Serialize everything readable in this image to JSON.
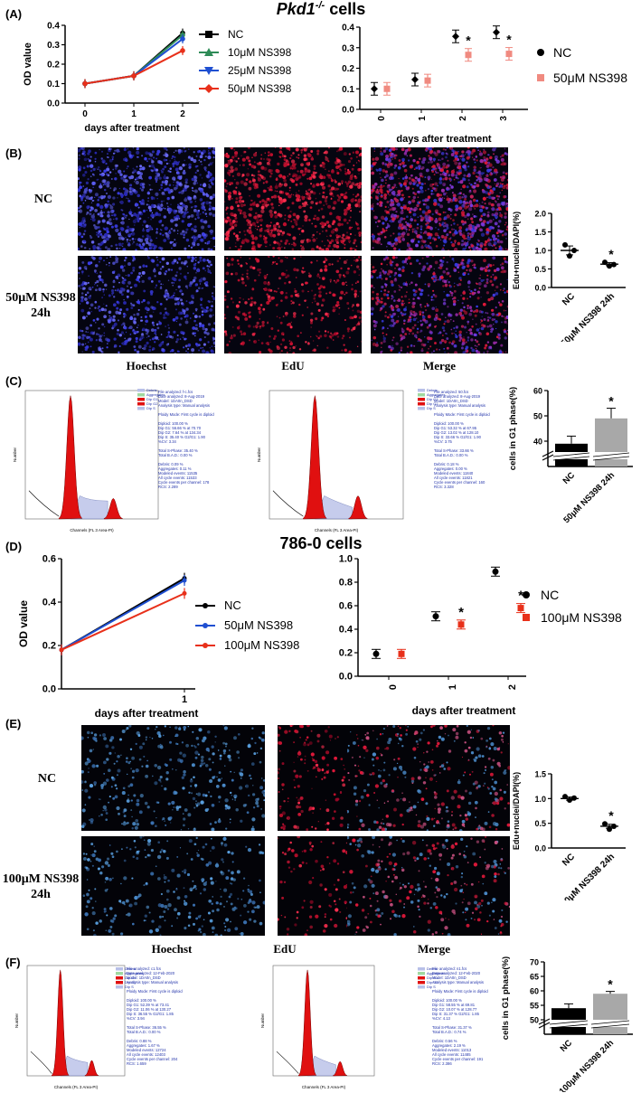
{
  "sections": {
    "pkd1_title": "Pkd1-/- cells",
    "pkd1_title_main": "Pkd1",
    "pkd1_title_sup": "-/-",
    "pkd1_title_tail": " cells",
    "c786_title": "786-0 cells"
  },
  "panels": {
    "A": "(A)",
    "B": "(B)",
    "C": "(C)",
    "D": "(D)",
    "E": "(E)",
    "F": "(F)"
  },
  "microscopy": {
    "B": {
      "rows": [
        "NC",
        "50μM NS398\n24h"
      ],
      "columns": [
        "Hoechst",
        "EdU",
        "Merge"
      ]
    },
    "E": {
      "rows": [
        "NC",
        "100μM NS398\n24h"
      ],
      "columns": [
        "Hoechst",
        "EdU",
        "Merge"
      ]
    }
  },
  "flow": {
    "axis_x": "Channels (FL 3 Area-PI)",
    "axis_y": "Number",
    "legend": [
      "Debris",
      "Aggregates",
      "Dip G1",
      "Dip G2",
      "Dip S"
    ],
    "C1": [
      "File analyzed: f-c.fcs",
      "Date analyzed: 8-Aug-2019",
      "Model: 1DA0n_DSD",
      "Analysis type: Manual analysis",
      "",
      "Ploidy Mode: First cycle is diploid",
      "",
      "Diploid: 100.00 %",
      "Dip G1: 56.66 % at 70.70",
      "Dip G2: 7.64 % at 134.34",
      "Dip S: 35.40 %  G2/G1: 1.90",
      "%CV: 3.34",
      "",
      "Total S-Phase: 35.40 %",
      "Total B.A.D.: 0.00 %",
      "",
      "Debris: 0.09 %",
      "Aggregates: 0.11 %",
      "Modeled events: 11535",
      "All cycle events: 11533",
      "Cycle events per channel: 178",
      "RCS: 2.289"
    ],
    "C2": [
      "File analyzed: 50.fcs",
      "Date analyzed: 8-Aug-2019",
      "Model: 1DA0n_DSD",
      "Analysis type: Manual analysis",
      "",
      "Ploidy Mode: First cycle is diploid",
      "",
      "Diploid: 100.00 %",
      "Dip G1: 53.32 % at 67.95",
      "Dip G2: 13.02 % at 128.10",
      "Dip S: 33.66 %  G2/G1: 1.90",
      "%CV: 3.75",
      "",
      "Total S-Phase: 33.66 %",
      "Total B.A.D.: 0.00 %",
      "",
      "Debris: 0.18 %",
      "Aggregates: 0.00 %",
      "Modeled events: 11840",
      "All cycle events: 11821",
      "Cycle events per channel: 160",
      "RCS: 3.328"
    ],
    "F1": [
      "File analyzed: c1.fcs",
      "Date analyzed: 12-Feb-2020",
      "Model: 1DA0n_DSD",
      "Analysis type: Manual analysis",
      "",
      "Ploidy Mode: First cycle is diploid",
      "",
      "Diploid: 100.00 %",
      "Dip G1: 52.39 % at 73.41",
      "Dip G2: 11.06 % at 130.27",
      "Dip S: 36.55 %  G2/G1: 1.85",
      "%CV: 3.94",
      "",
      "Total S-Phase: 36.55 %",
      "Total B.A.D.: 0.00 %",
      "",
      "Debris: 0.88 %",
      "Aggregates: 1.67 %",
      "Modeled events: 12724",
      "All cycle events: 12403",
      "Cycle events per channel: 204",
      "RCS: 1.659"
    ],
    "F2": [
      "File analyzed: n1.fcs",
      "Date analyzed: 12-Feb-2020",
      "Model: 1DA0n_DSD",
      "Analysis type: Manual analysis",
      "",
      "Ploidy Mode: First cycle is diploid",
      "",
      "Diploid: 100.00 %",
      "Dip G1: 58.55 % at 69.81",
      "Dip G2: 10.07 % at 128.77",
      "Dip S: 31.37 %  G2/G1: 1.85",
      "%CV: 4.13",
      "",
      "Total S-Phase: 31.37 %",
      "Total B.A.D.: 0.74 %",
      "",
      "Debris: 0.56 %",
      "Aggregates: 2.19 %",
      "Modeled events: 11013",
      "All cycle events: 11485",
      "Cycle events per channel: 191",
      "RCS: 2.386"
    ]
  },
  "chart_data": [
    {
      "id": "A1",
      "type": "line",
      "x": [
        0,
        1,
        2
      ],
      "xticks": [
        "0",
        "1",
        "2"
      ],
      "ylim": [
        0,
        0.4
      ],
      "yticks": [
        "0.0",
        "0.1",
        "0.2",
        "0.3",
        "0.4"
      ],
      "xlabel": "days after treatment",
      "ylabel": "OD value",
      "series": [
        {
          "name": "NC",
          "color": "#000000",
          "values": [
            0.1,
            0.14,
            0.36
          ]
        },
        {
          "name": "10μM NS398",
          "color": "#2e8b57",
          "values": [
            0.1,
            0.14,
            0.35
          ]
        },
        {
          "name": "25μM NS398",
          "color": "#1f4fd1",
          "values": [
            0.1,
            0.14,
            0.33
          ]
        },
        {
          "name": "50μM NS398",
          "color": "#e8301a",
          "values": [
            0.1,
            0.14,
            0.27
          ]
        }
      ]
    },
    {
      "id": "A2",
      "type": "scatter",
      "x": [
        0,
        1,
        2,
        3
      ],
      "xticks": [
        "0",
        "1",
        "2",
        "3"
      ],
      "ylim": [
        0,
        0.4
      ],
      "yticks": [
        "0.0",
        "0.1",
        "0.2",
        "0.3",
        "0.4"
      ],
      "xlabel": "days after treatment",
      "series": [
        {
          "name": "NC",
          "color": "#000000",
          "values": [
            0.1,
            0.145,
            0.355,
            0.375
          ]
        },
        {
          "name": "50μM NS398",
          "color": "#f08a80",
          "values": [
            0.1,
            0.14,
            0.265,
            0.27
          ]
        }
      ],
      "significance": [
        "",
        "",
        "*",
        "*"
      ]
    },
    {
      "id": "B",
      "type": "scatter",
      "categories": [
        "NC",
        "50μM NS398 24h"
      ],
      "ylim": [
        0,
        2.0
      ],
      "yticks": [
        "0.0",
        "0.5",
        "1.0",
        "1.5",
        "2.0"
      ],
      "ylabel": "Edu+nuclei/DAPI(%)",
      "points": [
        [
          1.15,
          0.85,
          1.0
        ],
        [
          0.68,
          0.58,
          0.62
        ]
      ],
      "means": [
        1.0,
        0.63
      ],
      "significance": [
        "",
        "*"
      ]
    },
    {
      "id": "C",
      "type": "bar",
      "categories": [
        "NC",
        "50μM NS398 24h"
      ],
      "values": [
        39,
        49
      ],
      "errors": [
        3,
        4
      ],
      "ylim": [
        30,
        60
      ],
      "yticks": [
        "40",
        "50",
        "60"
      ],
      "ylabel": "cells in G1 phase(%)",
      "colors": [
        "#000000",
        "#a8a8a8"
      ],
      "significance": [
        "",
        "*"
      ]
    },
    {
      "id": "D1",
      "type": "line",
      "x": [
        0,
        1
      ],
      "xticks": [
        "1"
      ],
      "ylim": [
        0,
        0.6
      ],
      "yticks": [
        "0.0",
        "0.2",
        "0.4",
        "0.6"
      ],
      "xlabel": "days after treatment",
      "ylabel": "OD value",
      "series": [
        {
          "name": "NC",
          "color": "#000000",
          "values": [
            0.18,
            0.51
          ]
        },
        {
          "name": "50μM NS398",
          "color": "#1f4fd1",
          "values": [
            0.18,
            0.5
          ]
        },
        {
          "name": "100μM NS398",
          "color": "#e8301a",
          "values": [
            0.18,
            0.44
          ]
        }
      ]
    },
    {
      "id": "D2",
      "type": "scatter",
      "x": [
        0,
        1,
        2
      ],
      "xticks": [
        "0",
        "1",
        "2"
      ],
      "ylim": [
        0,
        1.0
      ],
      "yticks": [
        "0.0",
        "0.2",
        "0.4",
        "0.6",
        "0.8",
        "1.0"
      ],
      "xlabel": "days after treatment",
      "series": [
        {
          "name": "NC",
          "color": "#000000",
          "values": [
            0.19,
            0.51,
            0.89
          ]
        },
        {
          "name": "100μM NS398",
          "color": "#e8301a",
          "values": [
            0.19,
            0.44,
            0.58
          ]
        }
      ],
      "significance": [
        "",
        "*",
        "*"
      ]
    },
    {
      "id": "E",
      "type": "scatter",
      "categories": [
        "NC",
        "100μM NS398 24h"
      ],
      "ylim": [
        0,
        1.5
      ],
      "yticks": [
        "0.0",
        "0.5",
        "1.0",
        "1.5"
      ],
      "ylabel": "Edu+nuclei/DAPI(%)",
      "points": [
        [
          1.04,
          0.97,
          1.01
        ],
        [
          0.49,
          0.38,
          0.44
        ]
      ],
      "means": [
        1.0,
        0.44
      ],
      "significance": [
        "",
        "*"
      ]
    },
    {
      "id": "F",
      "type": "bar",
      "categories": [
        "NC",
        "100μM NS398 24h"
      ],
      "values": [
        54,
        59
      ],
      "errors": [
        1.5,
        0.8
      ],
      "ylim": [
        45,
        70
      ],
      "yticks": [
        "50",
        "55",
        "60",
        "65",
        "70"
      ],
      "ylabel": "cells in G1 phase(%)",
      "colors": [
        "#000000",
        "#a8a8a8"
      ],
      "significance": [
        "",
        "*"
      ]
    }
  ]
}
